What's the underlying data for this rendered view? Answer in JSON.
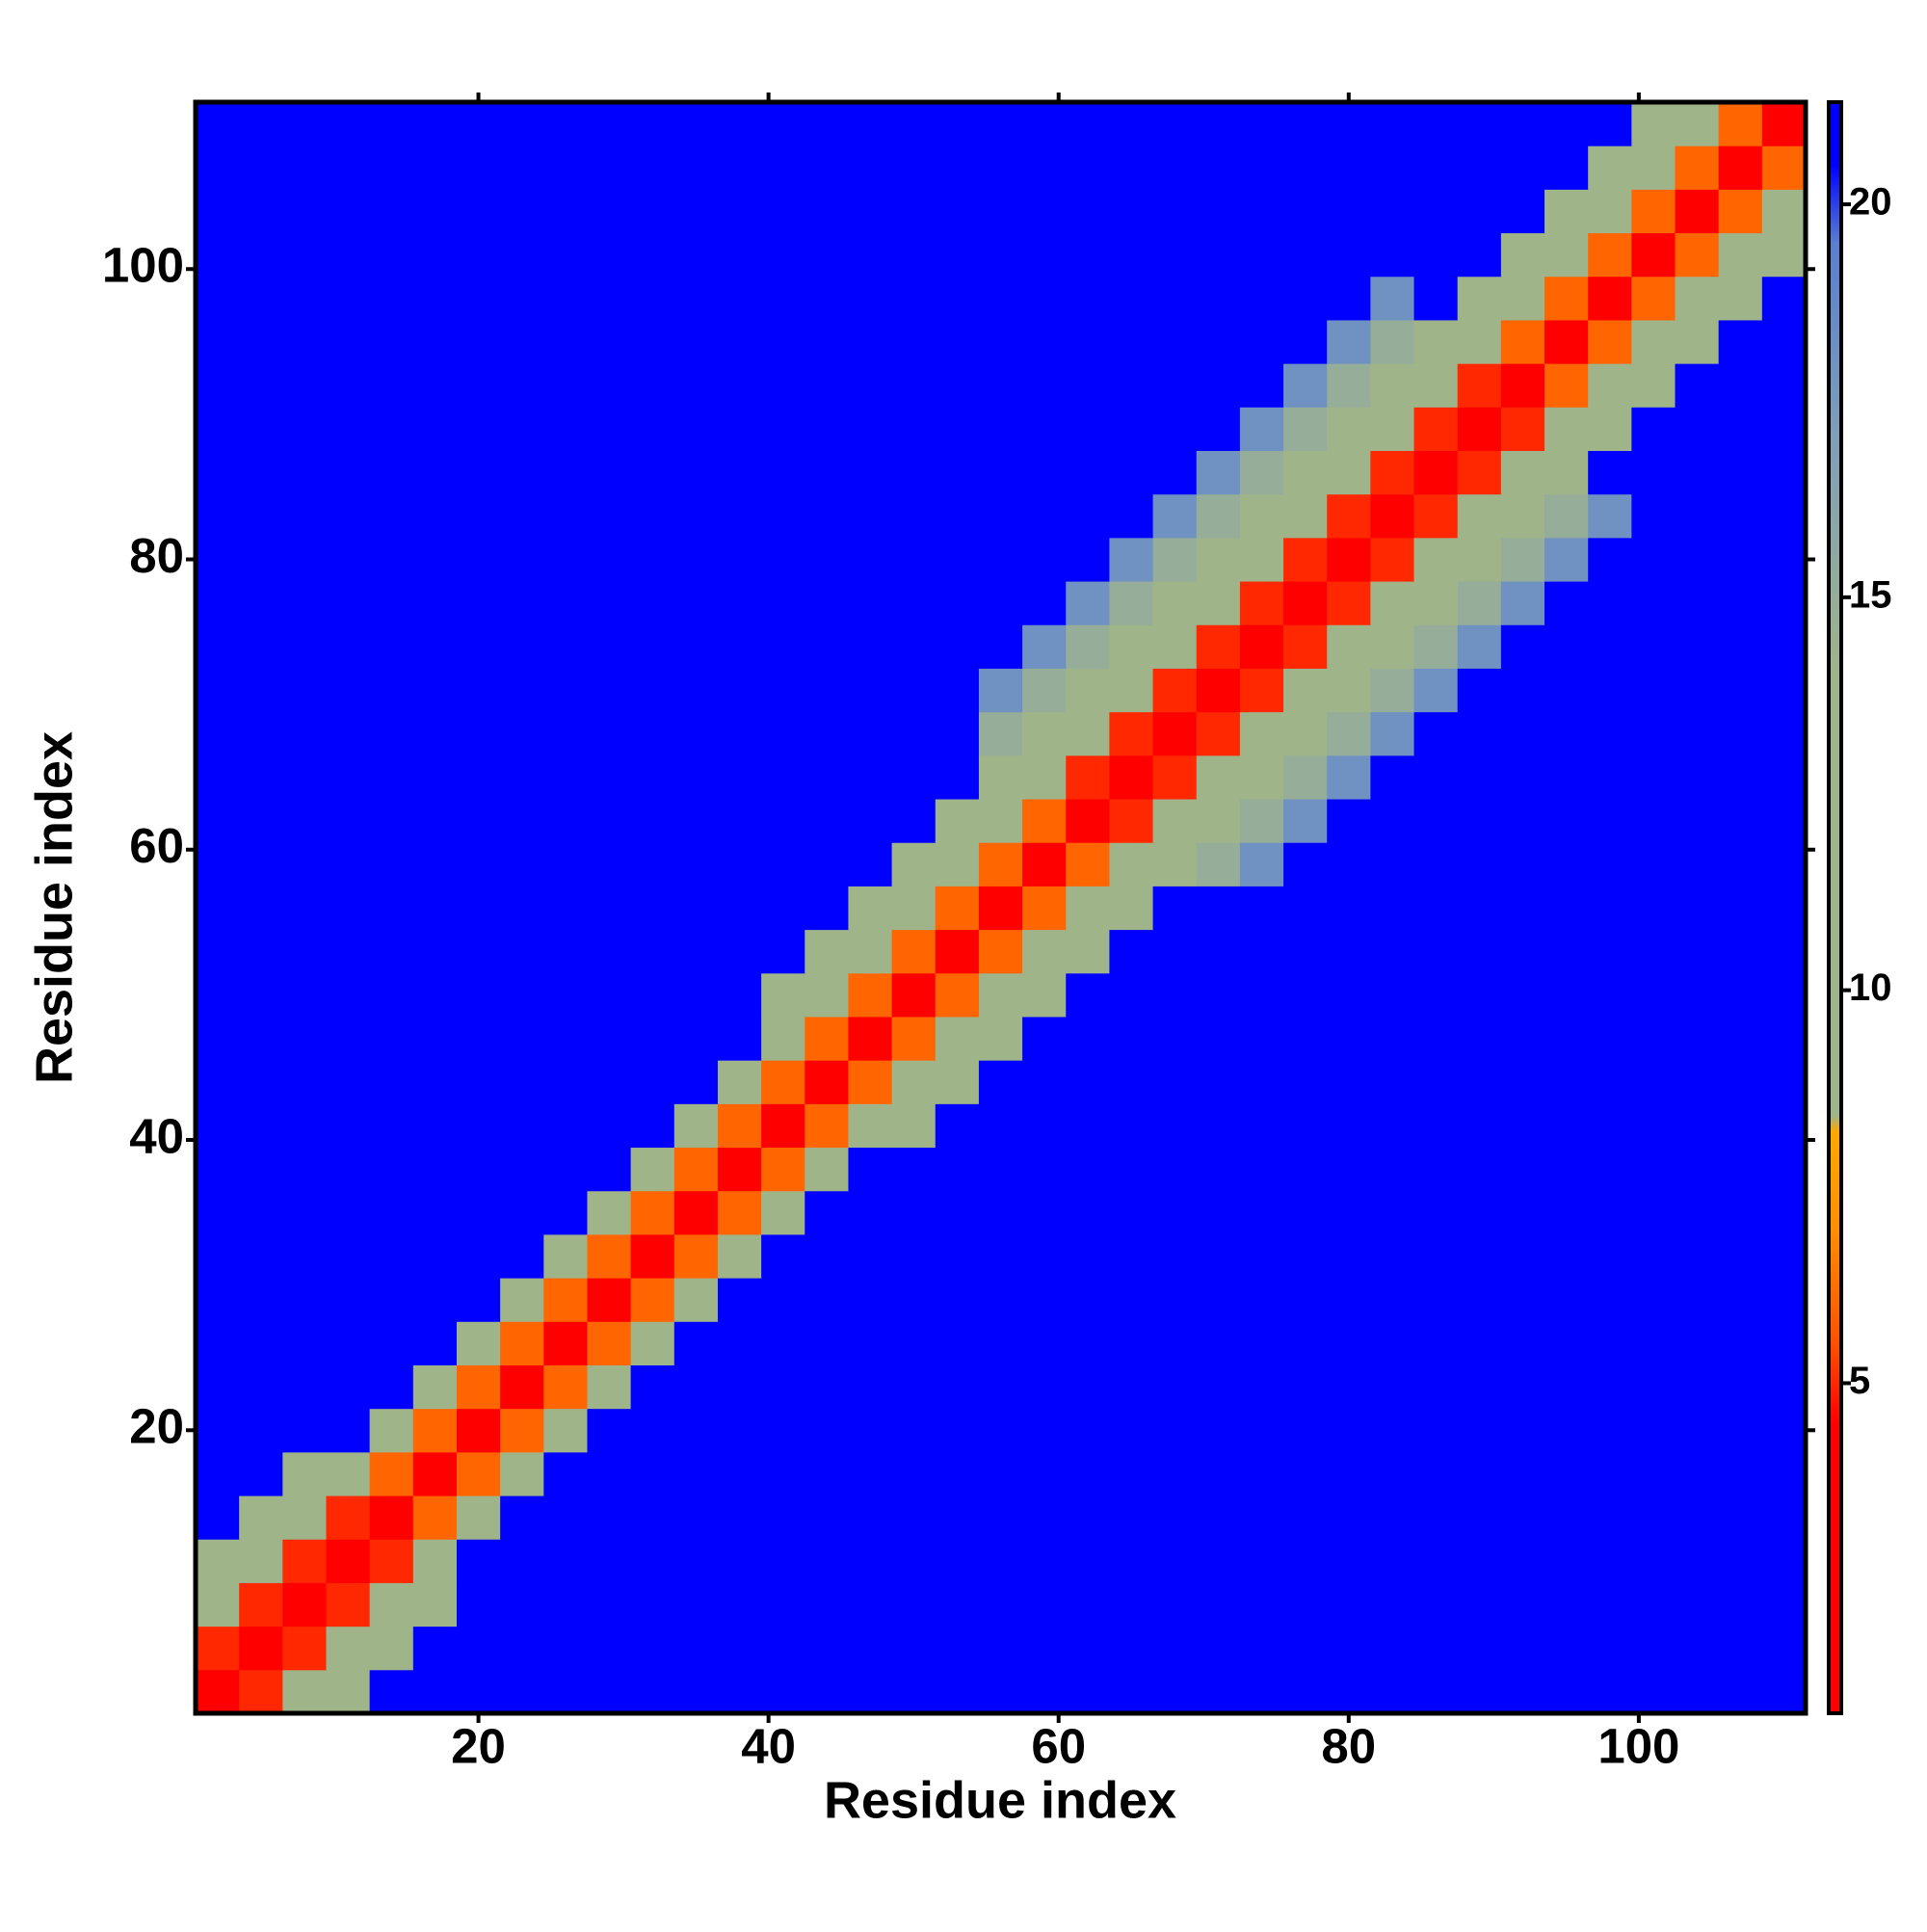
{
  "chart_data": {
    "type": "heatmap",
    "x_label": "Residue index",
    "y_label": "Residue index",
    "x": [
      2,
      5,
      8,
      11,
      14,
      17,
      20,
      23,
      26,
      29,
      32,
      35,
      38,
      41,
      44,
      47,
      50,
      53,
      56,
      59,
      62,
      65,
      68,
      71,
      74,
      77,
      80,
      83,
      86,
      89,
      92,
      95,
      98,
      101,
      104,
      107,
      110
    ],
    "y": [
      2,
      5,
      8,
      11,
      14,
      17,
      20,
      23,
      26,
      29,
      32,
      35,
      38,
      41,
      44,
      47,
      50,
      53,
      56,
      59,
      62,
      65,
      68,
      71,
      74,
      77,
      80,
      83,
      86,
      89,
      92,
      95,
      98,
      101,
      104,
      107,
      110
    ],
    "xlim": [
      0.5,
      111.5
    ],
    "ylim": [
      0.5,
      111.5
    ],
    "xticks": [
      20,
      40,
      60,
      80,
      100
    ],
    "yticks": [
      20,
      40,
      60,
      80,
      100
    ],
    "clim": [
      0.8,
      21.3
    ],
    "colorbar_ticks": [
      5,
      10,
      15,
      20
    ],
    "colorscale": [
      [
        0.8,
        "#ff0000"
      ],
      [
        4.5,
        "#ff0000"
      ],
      [
        5.5,
        "#ff5000"
      ],
      [
        7,
        "#ff9000"
      ],
      [
        8.2,
        "#ffa800"
      ],
      [
        8.4,
        "#a0b48a"
      ],
      [
        14,
        "#a0b48a"
      ],
      [
        17,
        "#7f9fb8"
      ],
      [
        19.5,
        "#5a7fd0"
      ],
      [
        20.5,
        "#0000ff"
      ],
      [
        21.3,
        "#0000ff"
      ]
    ],
    "values": [
      [
        2,
        5,
        10,
        13,
        21,
        21,
        21,
        21,
        21,
        21,
        21,
        21,
        21,
        21,
        21,
        21,
        21,
        21,
        21,
        21,
        21,
        21,
        21,
        21,
        21,
        21,
        21,
        21,
        21,
        21,
        21,
        21,
        21,
        21,
        21,
        21,
        21
      ],
      [
        5,
        2,
        5,
        10,
        13,
        21,
        21,
        21,
        21,
        21,
        21,
        21,
        21,
        21,
        21,
        21,
        21,
        21,
        21,
        21,
        21,
        21,
        21,
        21,
        21,
        21,
        21,
        21,
        21,
        21,
        21,
        21,
        21,
        21,
        21,
        21,
        21
      ],
      [
        10,
        5,
        2,
        5,
        10,
        13,
        21,
        21,
        21,
        21,
        21,
        21,
        21,
        21,
        21,
        21,
        21,
        21,
        21,
        21,
        21,
        21,
        21,
        21,
        21,
        21,
        21,
        21,
        21,
        21,
        21,
        21,
        21,
        21,
        21,
        21,
        21
      ],
      [
        13,
        10,
        5,
        2,
        5,
        11,
        21,
        21,
        21,
        21,
        21,
        21,
        21,
        21,
        21,
        21,
        21,
        21,
        21,
        21,
        21,
        21,
        21,
        21,
        21,
        21,
        21,
        21,
        21,
        21,
        21,
        21,
        21,
        21,
        21,
        21,
        21
      ],
      [
        21,
        13,
        10,
        5,
        2,
        6,
        11,
        21,
        21,
        21,
        21,
        21,
        21,
        21,
        21,
        21,
        21,
        21,
        21,
        21,
        21,
        21,
        21,
        21,
        21,
        21,
        21,
        21,
        21,
        21,
        21,
        21,
        21,
        21,
        21,
        21,
        21
      ],
      [
        21,
        21,
        13,
        11,
        6,
        2,
        6,
        11,
        21,
        21,
        21,
        21,
        21,
        21,
        21,
        21,
        21,
        21,
        21,
        21,
        21,
        21,
        21,
        21,
        21,
        21,
        21,
        21,
        21,
        21,
        21,
        21,
        21,
        21,
        21,
        21,
        21
      ],
      [
        21,
        21,
        21,
        21,
        11,
        6,
        2,
        6,
        11,
        21,
        21,
        21,
        21,
        21,
        21,
        21,
        21,
        21,
        21,
        21,
        21,
        21,
        21,
        21,
        21,
        21,
        21,
        21,
        21,
        21,
        21,
        21,
        21,
        21,
        21,
        21,
        21
      ],
      [
        21,
        21,
        21,
        21,
        21,
        11,
        6,
        2,
        6,
        11,
        21,
        21,
        21,
        21,
        21,
        21,
        21,
        21,
        21,
        21,
        21,
        21,
        21,
        21,
        21,
        21,
        21,
        21,
        21,
        21,
        21,
        21,
        21,
        21,
        21,
        21,
        21
      ],
      [
        21,
        21,
        21,
        21,
        21,
        21,
        11,
        6,
        2,
        6,
        11,
        21,
        21,
        21,
        21,
        21,
        21,
        21,
        21,
        21,
        21,
        21,
        21,
        21,
        21,
        21,
        21,
        21,
        21,
        21,
        21,
        21,
        21,
        21,
        21,
        21,
        21
      ],
      [
        21,
        21,
        21,
        21,
        21,
        21,
        21,
        11,
        6,
        2,
        6,
        11,
        21,
        21,
        21,
        21,
        21,
        21,
        21,
        21,
        21,
        21,
        21,
        21,
        21,
        21,
        21,
        21,
        21,
        21,
        21,
        21,
        21,
        21,
        21,
        21,
        21
      ],
      [
        21,
        21,
        21,
        21,
        21,
        21,
        21,
        21,
        11,
        6,
        2,
        6,
        11,
        21,
        21,
        21,
        21,
        21,
        21,
        21,
        21,
        21,
        21,
        21,
        21,
        21,
        21,
        21,
        21,
        21,
        21,
        21,
        21,
        21,
        21,
        21,
        21
      ],
      [
        21,
        21,
        21,
        21,
        21,
        21,
        21,
        21,
        21,
        11,
        6,
        2,
        6,
        11,
        21,
        21,
        21,
        21,
        21,
        21,
        21,
        21,
        21,
        21,
        21,
        21,
        21,
        21,
        21,
        21,
        21,
        21,
        21,
        21,
        21,
        21,
        21
      ],
      [
        21,
        21,
        21,
        21,
        21,
        21,
        21,
        21,
        21,
        21,
        11,
        6,
        2,
        6,
        11,
        21,
        21,
        21,
        21,
        21,
        21,
        21,
        21,
        21,
        21,
        21,
        21,
        21,
        21,
        21,
        21,
        21,
        21,
        21,
        21,
        21,
        21
      ],
      [
        21,
        21,
        21,
        21,
        21,
        21,
        21,
        21,
        21,
        21,
        21,
        11,
        6,
        2,
        6,
        10,
        13,
        21,
        21,
        21,
        21,
        21,
        21,
        21,
        21,
        21,
        21,
        21,
        21,
        21,
        21,
        21,
        21,
        21,
        21,
        21,
        21
      ],
      [
        21,
        21,
        21,
        21,
        21,
        21,
        21,
        21,
        21,
        21,
        21,
        21,
        11,
        6,
        2,
        6,
        10,
        13,
        21,
        21,
        21,
        21,
        21,
        21,
        21,
        21,
        21,
        21,
        21,
        21,
        21,
        21,
        21,
        21,
        21,
        21,
        21
      ],
      [
        21,
        21,
        21,
        21,
        21,
        21,
        21,
        21,
        21,
        21,
        21,
        21,
        21,
        10,
        6,
        2,
        6,
        10,
        13,
        21,
        21,
        21,
        21,
        21,
        21,
        21,
        21,
        21,
        21,
        21,
        21,
        21,
        21,
        21,
        21,
        21,
        21
      ],
      [
        21,
        21,
        21,
        21,
        21,
        21,
        21,
        21,
        21,
        21,
        21,
        21,
        21,
        13,
        10,
        6,
        2,
        6,
        10,
        13,
        21,
        21,
        21,
        21,
        21,
        21,
        21,
        21,
        21,
        21,
        21,
        21,
        21,
        21,
        21,
        21,
        21
      ],
      [
        21,
        21,
        21,
        21,
        21,
        21,
        21,
        21,
        21,
        21,
        21,
        21,
        21,
        21,
        13,
        10,
        6,
        2,
        6,
        10,
        13,
        21,
        21,
        21,
        21,
        21,
        21,
        21,
        21,
        21,
        21,
        21,
        21,
        21,
        21,
        21,
        21
      ],
      [
        21,
        21,
        21,
        21,
        21,
        21,
        21,
        21,
        21,
        21,
        21,
        21,
        21,
        21,
        21,
        13,
        10,
        6,
        2,
        6,
        10,
        13,
        21,
        21,
        21,
        21,
        21,
        21,
        21,
        21,
        21,
        21,
        21,
        21,
        21,
        21,
        21
      ],
      [
        21,
        21,
        21,
        21,
        21,
        21,
        21,
        21,
        21,
        21,
        21,
        21,
        21,
        21,
        21,
        21,
        13,
        10,
        6,
        2,
        6,
        9,
        12,
        15,
        18,
        21,
        21,
        21,
        21,
        21,
        21,
        21,
        21,
        21,
        21,
        21,
        21
      ],
      [
        21,
        21,
        21,
        21,
        21,
        21,
        21,
        21,
        21,
        21,
        21,
        21,
        21,
        21,
        21,
        21,
        21,
        13,
        10,
        6,
        2,
        5,
        9,
        12,
        15,
        18,
        21,
        21,
        21,
        21,
        21,
        21,
        21,
        21,
        21,
        21,
        21
      ],
      [
        21,
        21,
        21,
        21,
        21,
        21,
        21,
        21,
        21,
        21,
        21,
        21,
        21,
        21,
        21,
        21,
        21,
        21,
        13,
        9,
        5,
        2,
        5,
        9,
        12,
        15,
        18,
        21,
        21,
        21,
        21,
        21,
        21,
        21,
        21,
        21,
        21
      ],
      [
        21,
        21,
        21,
        21,
        21,
        21,
        21,
        21,
        21,
        21,
        21,
        21,
        21,
        21,
        21,
        21,
        21,
        21,
        15,
        12,
        9,
        5,
        2,
        5,
        9,
        12,
        15,
        18,
        21,
        21,
        21,
        21,
        21,
        21,
        21,
        21,
        21
      ],
      [
        21,
        21,
        21,
        21,
        21,
        21,
        21,
        21,
        21,
        21,
        21,
        21,
        21,
        21,
        21,
        21,
        21,
        21,
        18,
        15,
        12,
        9,
        5,
        2,
        5,
        9,
        12,
        15,
        18,
        21,
        21,
        21,
        21,
        21,
        21,
        21,
        21
      ],
      [
        21,
        21,
        21,
        21,
        21,
        21,
        21,
        21,
        21,
        21,
        21,
        21,
        21,
        21,
        21,
        21,
        21,
        21,
        21,
        18,
        15,
        12,
        9,
        5,
        2,
        5,
        9,
        12,
        15,
        18,
        21,
        21,
        21,
        21,
        21,
        21,
        21
      ],
      [
        21,
        21,
        21,
        21,
        21,
        21,
        21,
        21,
        21,
        21,
        21,
        21,
        21,
        21,
        21,
        21,
        21,
        21,
        21,
        21,
        18,
        15,
        12,
        9,
        5,
        2,
        5,
        9,
        12,
        15,
        18,
        21,
        21,
        21,
        21,
        21,
        21
      ],
      [
        21,
        21,
        21,
        21,
        21,
        21,
        21,
        21,
        21,
        21,
        21,
        21,
        21,
        21,
        21,
        21,
        21,
        21,
        21,
        21,
        21,
        18,
        15,
        12,
        9,
        5,
        2,
        5,
        9,
        12,
        15,
        18,
        21,
        21,
        21,
        21,
        21
      ],
      [
        21,
        21,
        21,
        21,
        21,
        21,
        21,
        21,
        21,
        21,
        21,
        21,
        21,
        21,
        21,
        21,
        21,
        21,
        21,
        21,
        21,
        21,
        18,
        15,
        12,
        9,
        5,
        2,
        5,
        9,
        12,
        15,
        18,
        21,
        21,
        21,
        21
      ],
      [
        21,
        21,
        21,
        21,
        21,
        21,
        21,
        21,
        21,
        21,
        21,
        21,
        21,
        21,
        21,
        21,
        21,
        21,
        21,
        21,
        21,
        21,
        21,
        18,
        15,
        12,
        9,
        5,
        2,
        5,
        9,
        12,
        21,
        21,
        21,
        21,
        21
      ],
      [
        21,
        21,
        21,
        21,
        21,
        21,
        21,
        21,
        21,
        21,
        21,
        21,
        21,
        21,
        21,
        21,
        21,
        21,
        21,
        21,
        21,
        21,
        21,
        21,
        18,
        15,
        12,
        9,
        5,
        2,
        5,
        11,
        14,
        21,
        21,
        21,
        21
      ],
      [
        21,
        21,
        21,
        21,
        21,
        21,
        21,
        21,
        21,
        21,
        21,
        21,
        21,
        21,
        21,
        21,
        21,
        21,
        21,
        21,
        21,
        21,
        21,
        21,
        21,
        18,
        15,
        12,
        9,
        5,
        2,
        6,
        11,
        14,
        21,
        21,
        21
      ],
      [
        21,
        21,
        21,
        21,
        21,
        21,
        21,
        21,
        21,
        21,
        21,
        21,
        21,
        21,
        21,
        21,
        21,
        21,
        21,
        21,
        21,
        21,
        21,
        21,
        21,
        21,
        18,
        15,
        12,
        11,
        6,
        2,
        6,
        11,
        14,
        21,
        21
      ],
      [
        21,
        21,
        21,
        21,
        21,
        21,
        21,
        21,
        21,
        21,
        21,
        21,
        21,
        21,
        21,
        21,
        21,
        21,
        21,
        21,
        21,
        21,
        21,
        21,
        21,
        21,
        21,
        18,
        21,
        14,
        11,
        6,
        2,
        6,
        11,
        14,
        21
      ],
      [
        21,
        21,
        21,
        21,
        21,
        21,
        21,
        21,
        21,
        21,
        21,
        21,
        21,
        21,
        21,
        21,
        21,
        21,
        21,
        21,
        21,
        21,
        21,
        21,
        21,
        21,
        21,
        21,
        21,
        21,
        14,
        11,
        6,
        2,
        6,
        11,
        14
      ],
      [
        21,
        21,
        21,
        21,
        21,
        21,
        21,
        21,
        21,
        21,
        21,
        21,
        21,
        21,
        21,
        21,
        21,
        21,
        21,
        21,
        21,
        21,
        21,
        21,
        21,
        21,
        21,
        21,
        21,
        21,
        21,
        14,
        11,
        6,
        2,
        6,
        11
      ],
      [
        21,
        21,
        21,
        21,
        21,
        21,
        21,
        21,
        21,
        21,
        21,
        21,
        21,
        21,
        21,
        21,
        21,
        21,
        21,
        21,
        21,
        21,
        21,
        21,
        21,
        21,
        21,
        21,
        21,
        21,
        21,
        21,
        14,
        11,
        6,
        2,
        6
      ],
      [
        21,
        21,
        21,
        21,
        21,
        21,
        21,
        21,
        21,
        21,
        21,
        21,
        21,
        21,
        21,
        21,
        21,
        21,
        21,
        21,
        21,
        21,
        21,
        21,
        21,
        21,
        21,
        21,
        21,
        21,
        21,
        21,
        21,
        14,
        11,
        6,
        2
      ]
    ]
  }
}
